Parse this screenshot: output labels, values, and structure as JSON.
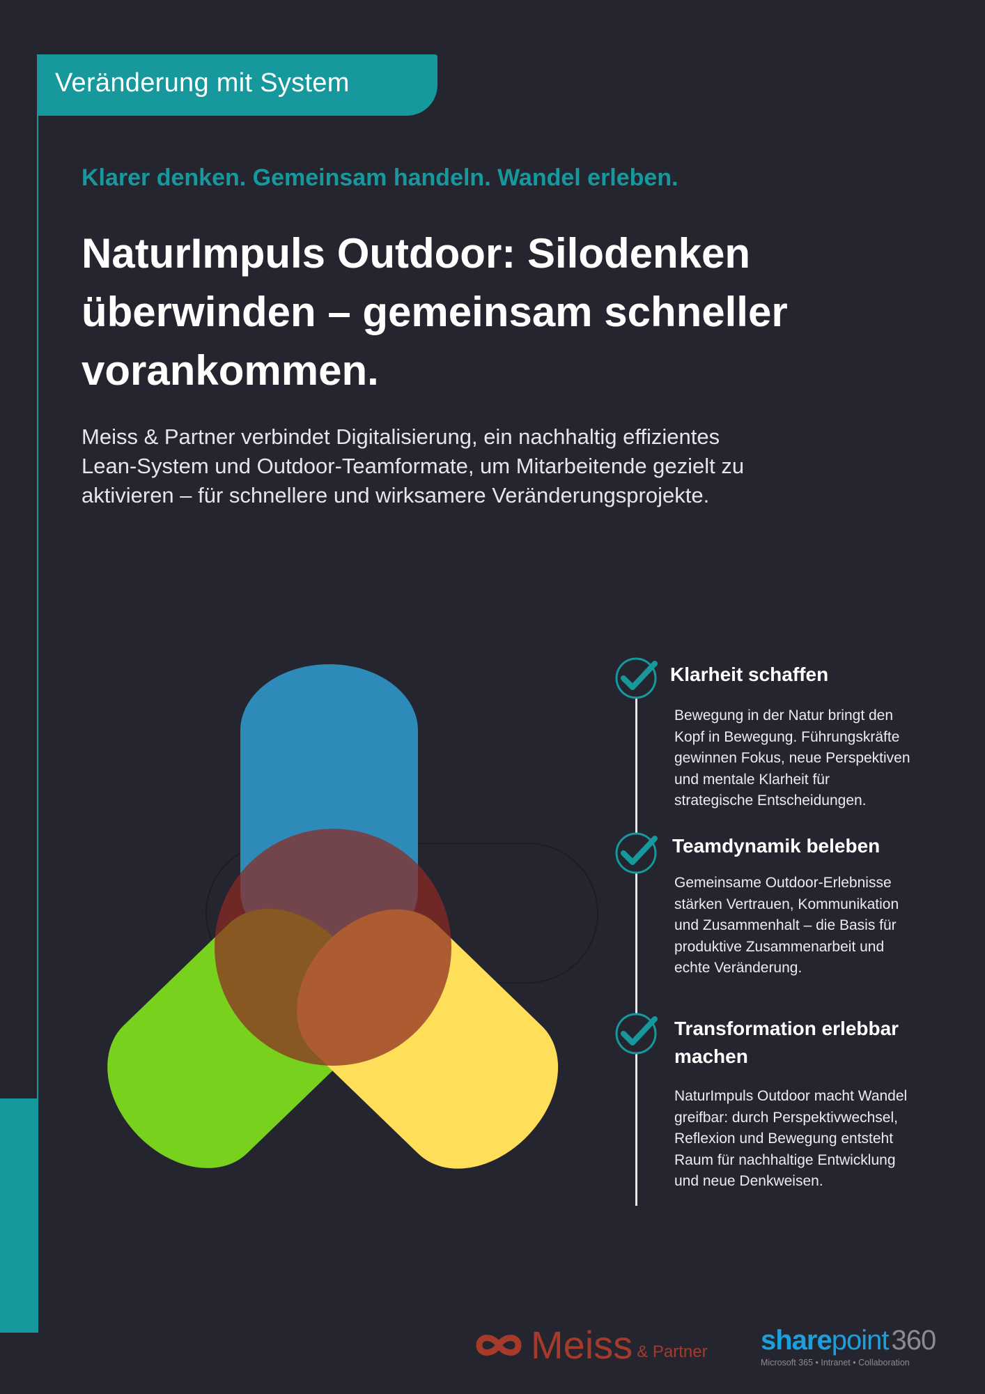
{
  "header": {
    "tab_label": "Veränderung mit System"
  },
  "tagline": "Klarer denken. Gemeinsam handeln. Wandel erleben.",
  "title_lines": [
    "NaturImpuls Outdoor: Silodenken",
    "überwinden – gemeinsam schneller",
    "vorankommen."
  ],
  "intro_lines": [
    "Meiss & Partner verbindet Digitalisierung, ein nachhaltig effizientes",
    "Lean-System und Outdoor-Teamformate, um Mitarbeitende gezielt zu",
    "aktivieren – für schnellere und wirksamere Veränderungsprojekte."
  ],
  "graphic": {
    "colors": {
      "blue": "#2e8bb9",
      "green": "#77d11d",
      "yellow": "#ffde5a",
      "center": "#8e2a22"
    }
  },
  "timeline": [
    {
      "icon": "check-circle-icon",
      "title": "Klarheit schaffen",
      "body_lines": [
        "Bewegung in der Natur bringt den",
        "Kopf in Bewegung. Führungskräfte",
        "gewinnen Fokus, neue Perspektiven",
        "und mentale Klarheit für",
        "strategische Entscheidungen."
      ]
    },
    {
      "icon": "check-circle-icon",
      "title": "Teamdynamik beleben",
      "body_lines": [
        "Gemeinsame Outdoor-Erlebnisse",
        "stärken Vertrauen, Kommunikation",
        "und Zusammenhalt – die Basis für",
        "produktive Zusammenarbeit und",
        "echte Veränderung."
      ]
    },
    {
      "icon": "check-circle-icon",
      "title_lines": [
        "Transformation erlebbar",
        "machen"
      ],
      "body_lines": [
        "NaturImpuls Outdoor macht Wandel",
        "greifbar: durch Perspektivwechsel,",
        "Reflexion und Bewegung entsteht",
        "Raum für nachhaltige Entwicklung",
        "und neue Denkweisen."
      ]
    }
  ],
  "footer": {
    "meiss_logo": {
      "name": "Meiss",
      "suffix": "& Partner",
      "color": "#a63a2b"
    },
    "sharepoint_logo": {
      "bold": "share",
      "light": "point",
      "num": "360",
      "tagline": "Microsoft 365 • Intranet • Collaboration",
      "color": "#1aa0dc"
    }
  },
  "colors": {
    "accent": "#16989c",
    "background": "#24252f"
  }
}
